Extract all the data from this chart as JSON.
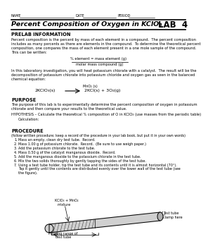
{
  "title": "Percent Composition of Oxygen in KClO₃",
  "lab_label": "LAB  4",
  "name_label": "NAME",
  "date_label": "DATE",
  "period_label": "PERIOD",
  "prelab_title": "PRELAB INFORMATION",
  "prelab_text1": "Percent composition is the percent by mass of each element in a compound.  The percent composition\nincludes as many percents as there are elements in the compound.  To determine the theoretical percent\ncomposition, one compares the mass of each element present in a one mole sample of the compound.\nThis can be written:",
  "formula_line1": "% element = mass element (g)",
  "formula_line2": "molar mass compound (g)",
  "prelab_text2": "In this laboratory investigation, you will heat potassium chlorate with a catalyst.  The result will be the\ndecomposition of potassium chlorate into potassium chloride and oxygen gas as seen in the balanced\nchemical equation:",
  "equation_catalyst": "MnO₂ (s)",
  "equation_left": "2KClO₃(s)",
  "equation_arrow": "⟶",
  "equation_right": "2KCl(s) + 3O₂(g)",
  "purpose_title": "PURPOSE",
  "purpose_text": "The purpose of this lab is to experimentally determine the percent composition of oxygen in potassium\nchlorate and then compare your results to the theoretical value.",
  "hypothesis_text": "HYPOTHESIS – Calculate the theoretical % composition of O in KClO₃ (use masses from the periodic table)",
  "calculation_label": "Calculation:",
  "procedure_title": "PROCEDURE",
  "procedure_intro": "(follow written procedure; keep a record of the procedure in your lab book, but put it in your own words)",
  "steps": [
    "Mass an empty, clean dry test tube.  Record.",
    "Mass 1.00 g of potassium chlorate.  Record.  (Be sure to use weigh paper.)",
    "Add the potassium chlorate to the test tube.",
    "Mass 0.50 g of the catalyst manganous dioxide.  Record.",
    "Add the manganous dioxide to the potassium chlorate in the test tube.",
    "Mix the two solids thoroughly by gently tapping the sides of the test tube.",
    "Using a test tube holder, tip the test tube and its contents until it is almost horizontal (70°).\nTap it gently until the contents are distributed evenly over the lower wall of the test tube (see\nthe figure)."
  ],
  "diagram_label1": "KClO₃ + MnO₂",
  "diagram_label2": "mixture",
  "diagram_label3": "Heating range of",
  "diagram_label4": "test tube",
  "diagram_label5": "Test tube",
  "diagram_label6": "clamp here",
  "bg_color": "#ffffff",
  "text_color": "#000000"
}
